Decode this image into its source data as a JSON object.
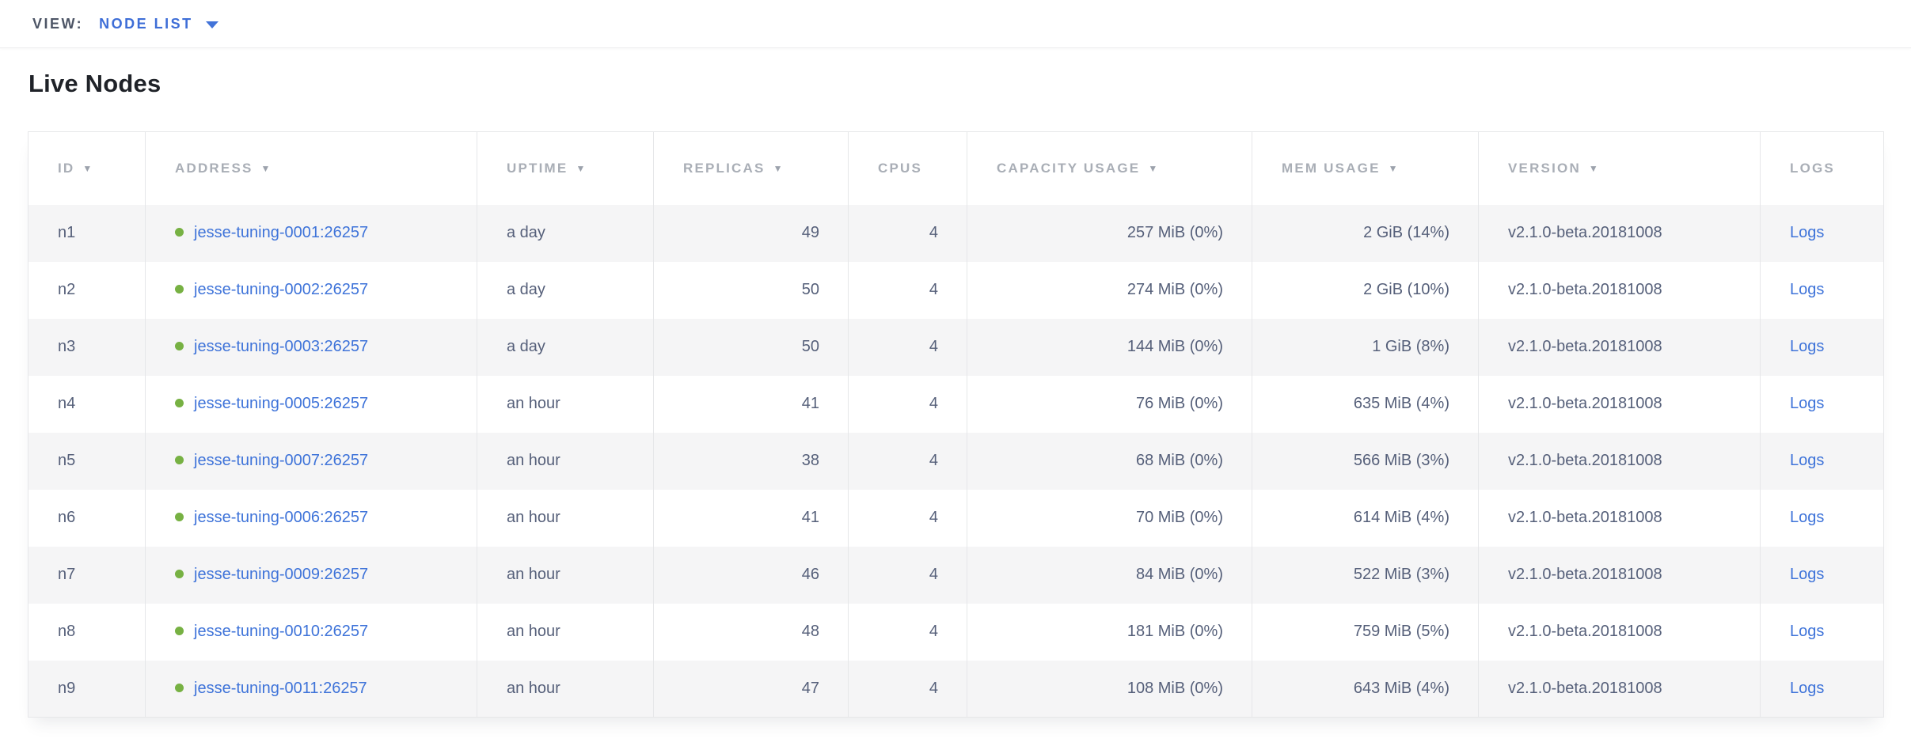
{
  "view_bar": {
    "label": "VIEW:",
    "selected_view": "NODE LIST"
  },
  "page": {
    "title": "Live Nodes"
  },
  "table": {
    "sort_glyph": "▼",
    "columns": [
      {
        "key": "id",
        "label": "ID",
        "sortable": true,
        "align": "left"
      },
      {
        "key": "address",
        "label": "ADDRESS",
        "sortable": true,
        "align": "left"
      },
      {
        "key": "uptime",
        "label": "UPTIME",
        "sortable": true,
        "align": "left"
      },
      {
        "key": "replicas",
        "label": "REPLICAS",
        "sortable": true,
        "align": "right"
      },
      {
        "key": "cpus",
        "label": "CPUS",
        "sortable": false,
        "align": "right"
      },
      {
        "key": "capacity_usage",
        "label": "CAPACITY USAGE",
        "sortable": true,
        "align": "right"
      },
      {
        "key": "mem_usage",
        "label": "MEM USAGE",
        "sortable": true,
        "align": "right"
      },
      {
        "key": "version",
        "label": "VERSION",
        "sortable": true,
        "align": "left"
      },
      {
        "key": "logs",
        "label": "LOGS",
        "sortable": false,
        "align": "left"
      }
    ],
    "rows": [
      {
        "id": "n1",
        "status": "live",
        "address": "jesse-tuning-0001:26257",
        "uptime": "a day",
        "replicas": "49",
        "cpus": "4",
        "capacity_usage": "257 MiB (0%)",
        "mem_usage": "2 GiB (14%)",
        "version": "v2.1.0-beta.20181008",
        "logs": "Logs"
      },
      {
        "id": "n2",
        "status": "live",
        "address": "jesse-tuning-0002:26257",
        "uptime": "a day",
        "replicas": "50",
        "cpus": "4",
        "capacity_usage": "274 MiB (0%)",
        "mem_usage": "2 GiB (10%)",
        "version": "v2.1.0-beta.20181008",
        "logs": "Logs"
      },
      {
        "id": "n3",
        "status": "live",
        "address": "jesse-tuning-0003:26257",
        "uptime": "a day",
        "replicas": "50",
        "cpus": "4",
        "capacity_usage": "144 MiB (0%)",
        "mem_usage": "1 GiB (8%)",
        "version": "v2.1.0-beta.20181008",
        "logs": "Logs"
      },
      {
        "id": "n4",
        "status": "live",
        "address": "jesse-tuning-0005:26257",
        "uptime": "an hour",
        "replicas": "41",
        "cpus": "4",
        "capacity_usage": "76 MiB (0%)",
        "mem_usage": "635 MiB (4%)",
        "version": "v2.1.0-beta.20181008",
        "logs": "Logs"
      },
      {
        "id": "n5",
        "status": "live",
        "address": "jesse-tuning-0007:26257",
        "uptime": "an hour",
        "replicas": "38",
        "cpus": "4",
        "capacity_usage": "68 MiB (0%)",
        "mem_usage": "566 MiB (3%)",
        "version": "v2.1.0-beta.20181008",
        "logs": "Logs"
      },
      {
        "id": "n6",
        "status": "live",
        "address": "jesse-tuning-0006:26257",
        "uptime": "an hour",
        "replicas": "41",
        "cpus": "4",
        "capacity_usage": "70 MiB (0%)",
        "mem_usage": "614 MiB (4%)",
        "version": "v2.1.0-beta.20181008",
        "logs": "Logs"
      },
      {
        "id": "n7",
        "status": "live",
        "address": "jesse-tuning-0009:26257",
        "uptime": "an hour",
        "replicas": "46",
        "cpus": "4",
        "capacity_usage": "84 MiB (0%)",
        "mem_usage": "522 MiB (3%)",
        "version": "v2.1.0-beta.20181008",
        "logs": "Logs"
      },
      {
        "id": "n8",
        "status": "live",
        "address": "jesse-tuning-0010:26257",
        "uptime": "an hour",
        "replicas": "48",
        "cpus": "4",
        "capacity_usage": "181 MiB (0%)",
        "mem_usage": "759 MiB (5%)",
        "version": "v2.1.0-beta.20181008",
        "logs": "Logs"
      },
      {
        "id": "n9",
        "status": "live",
        "address": "jesse-tuning-0011:26257",
        "uptime": "an hour",
        "replicas": "47",
        "cpus": "4",
        "capacity_usage": "108 MiB (0%)",
        "mem_usage": "643 MiB (4%)",
        "version": "v2.1.0-beta.20181008",
        "logs": "Logs"
      }
    ]
  },
  "colors": {
    "link_blue": "#3e73d9",
    "accent_blue": "#3e6ed7",
    "status_live_green": "#77b143",
    "header_gray": "#a9aeb6",
    "body_text": "#56607a",
    "row_stripe": "#f5f5f6",
    "border": "#e6e7e9"
  }
}
